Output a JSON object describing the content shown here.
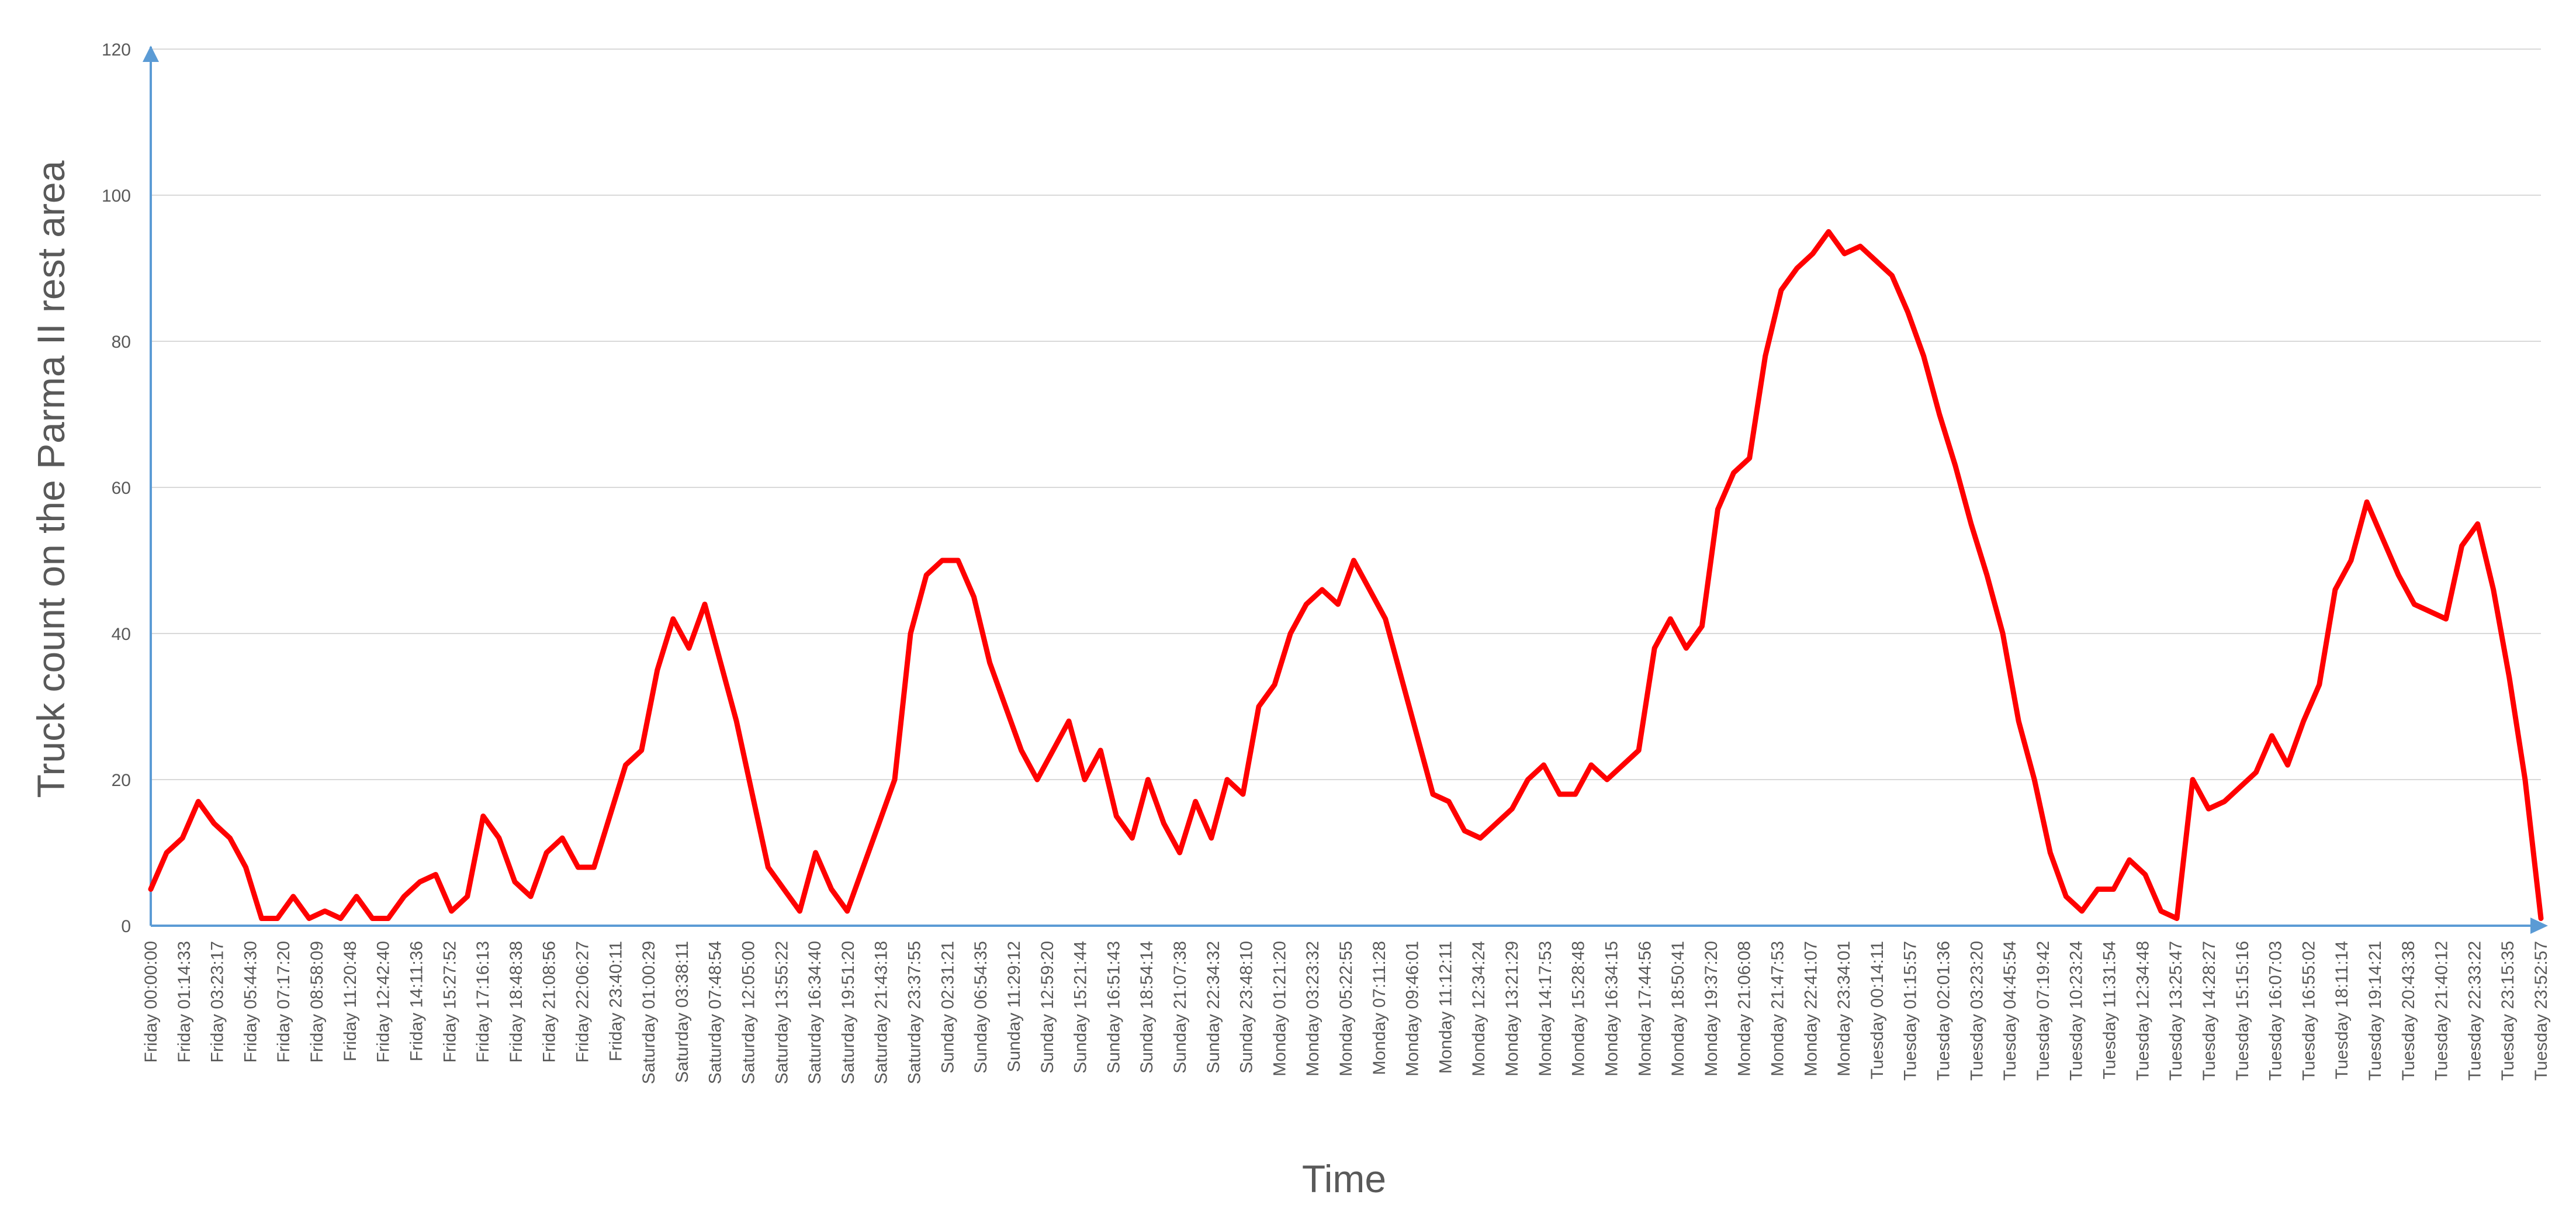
{
  "chart_data": {
    "type": "line",
    "title": "",
    "xlabel": "Time",
    "ylabel": "Truck count on the Parma II rest area",
    "ylim": [
      0,
      120
    ],
    "y_ticks": [
      0,
      20,
      40,
      60,
      80,
      100,
      120
    ],
    "grid": "horizontal",
    "legend": "none",
    "colors": {
      "line": "#ff0000",
      "axis": "#5b9bd5",
      "grid": "#d9d9d9",
      "text": "#595959"
    },
    "x_tick_labels": [
      "Friday 00:00:00",
      "Friday 01:14:33",
      "Friday 03:23:17",
      "Friday 05:44:30",
      "Friday 07:17:20",
      "Friday 08:58:09",
      "Friday 11:20:48",
      "Friday 12:42:40",
      "Friday 14:11:36",
      "Friday 15:27:52",
      "Friday 17:16:13",
      "Friday 18:48:38",
      "Friday 21:08:56",
      "Friday 22:06:27",
      "Friday 23:40:11",
      "Saturday 01:00:29",
      "Saturday 03:38:11",
      "Saturday 07:48:54",
      "Saturday 12:05:00",
      "Saturday 13:55:22",
      "Saturday 16:34:40",
      "Saturday 19:51:20",
      "Saturday 21:43:18",
      "Saturday 23:37:55",
      "Sunday 02:31:21",
      "Sunday 06:54:35",
      "Sunday 11:29:12",
      "Sunday 12:59:20",
      "Sunday 15:21:44",
      "Sunday 16:51:43",
      "Sunday 18:54:14",
      "Sunday 21:07:38",
      "Sunday 22:34:32",
      "Sunday 23:48:10",
      "Monday 01:21:20",
      "Monday 03:23:32",
      "Monday 05:22:55",
      "Monday 07:11:28",
      "Monday 09:46:01",
      "Monday 11:12:11",
      "Monday 12:34:24",
      "Monday 13:21:29",
      "Monday 14:17:53",
      "Monday 15:28:48",
      "Monday 16:34:15",
      "Monday 17:44:56",
      "Monday 18:50:41",
      "Monday 19:37:20",
      "Monday 21:06:08",
      "Monday 21:47:53",
      "Monday 22:41:07",
      "Monday 23:34:01",
      "Tuesday 00:14:11",
      "Tuesday 01:15:57",
      "Tuesday 02:01:36",
      "Tuesday 03:23:20",
      "Tuesday 04:45:54",
      "Tuesday 07:19:42",
      "Tuesday 10:23:24",
      "Tuesday 11:31:54",
      "Tuesday 12:34:48",
      "Tuesday 13:25:47",
      "Tuesday 14:28:27",
      "Tuesday 15:15:16",
      "Tuesday 16:07:03",
      "Tuesday 16:55:02",
      "Tuesday 18:11:14",
      "Tuesday 19:14:21",
      "Tuesday 20:43:38",
      "Tuesday 21:40:12",
      "Tuesday 22:33:22",
      "Tuesday 23:15:35",
      "Tuesday 23:52:57"
    ],
    "series": [
      {
        "values": [
          5,
          10,
          12,
          17,
          14,
          12,
          8,
          1,
          1,
          4,
          1,
          2,
          1,
          4,
          1,
          1,
          4,
          6,
          7,
          2,
          4,
          15,
          12,
          6,
          4,
          10,
          12,
          8,
          8,
          15,
          22,
          24,
          35,
          42,
          38,
          44,
          36,
          28,
          18,
          8,
          5,
          2,
          10,
          5,
          2,
          8,
          14,
          20,
          40,
          48,
          50,
          50,
          45,
          36,
          30,
          24,
          20,
          24,
          28,
          20,
          24,
          15,
          12,
          20,
          14,
          10,
          17,
          12,
          20,
          18,
          30,
          33,
          40,
          44,
          46,
          44,
          50,
          46,
          42,
          34,
          26,
          18,
          17,
          13,
          12,
          14,
          16,
          20,
          22,
          18,
          18,
          22,
          20,
          22,
          24,
          38,
          42,
          38,
          41,
          57,
          62,
          64,
          78,
          87,
          90,
          92,
          95,
          92,
          93,
          91,
          89,
          84,
          78,
          70,
          63,
          55,
          48,
          40,
          28,
          20,
          10,
          4,
          2,
          5,
          5,
          9,
          7,
          2,
          1,
          20,
          16,
          17,
          19,
          21,
          26,
          22,
          28,
          33,
          46,
          50,
          58,
          53,
          48,
          44,
          43,
          42,
          52,
          55,
          46,
          34,
          20,
          1
        ]
      }
    ]
  }
}
